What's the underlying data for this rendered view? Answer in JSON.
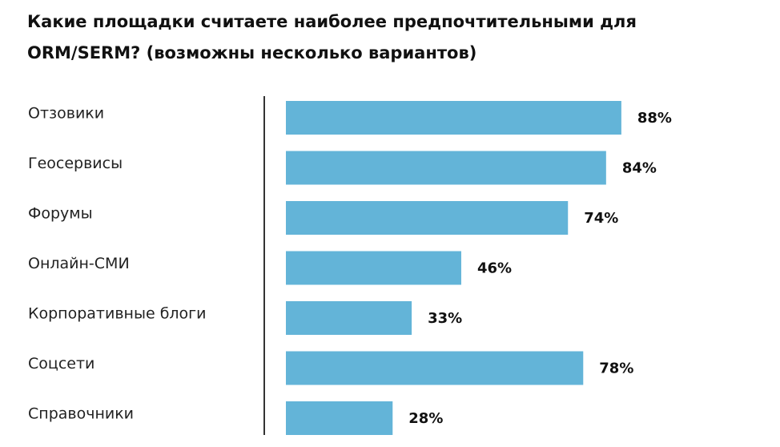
{
  "chart_data": {
    "type": "bar",
    "orientation": "horizontal",
    "title": "Какие площадки считаете наиболее предпочтительными для ORM/SERM? (возможны несколько вариантов)",
    "categories": [
      "Отзовики",
      "Геосервисы",
      "Форумы",
      "Онлайн-СМИ",
      "Корпоративные блоги",
      "Соцсети",
      "Справочники"
    ],
    "values": [
      88,
      84,
      74,
      46,
      33,
      78,
      28
    ],
    "value_labels": [
      "88%",
      "84%",
      "74%",
      "46%",
      "33%",
      "78%",
      "28%"
    ],
    "unit": "%",
    "xlim": [
      0,
      100
    ],
    "grid": false,
    "legend": "none",
    "bar_color": "#63b4d8",
    "axis_color": "#333333"
  }
}
